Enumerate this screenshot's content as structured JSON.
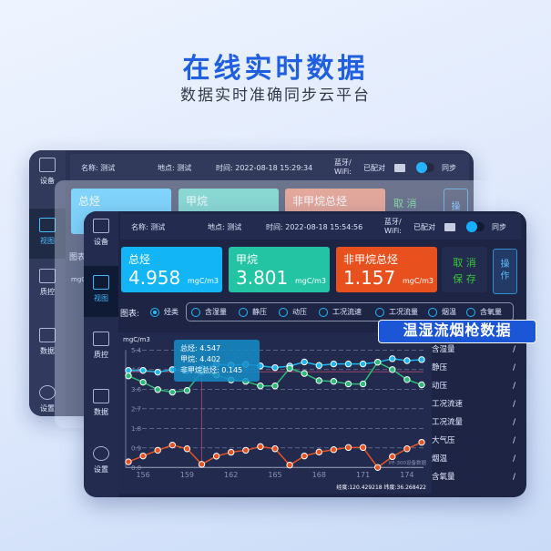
{
  "hero": {
    "title": "在线实时数据",
    "subtitle": "数据实时准确同步云平台",
    "badge": "温湿流烟枪数据"
  },
  "sidebar": {
    "items": [
      {
        "label": "设备",
        "icon": "tablet-icon"
      },
      {
        "label": "视图",
        "icon": "window-icon",
        "active": true
      },
      {
        "label": "质控",
        "icon": "list-window-icon"
      },
      {
        "label": "数据",
        "icon": "bar-chart-icon"
      },
      {
        "label": "设置",
        "icon": "gear-icon"
      }
    ]
  },
  "back": {
    "name": "名称: 测试",
    "place": "地点: 测试",
    "time": "时间: 2022-08-18 15:29:34",
    "bt": "蓝牙/\nWiFi:",
    "paired": "已配对",
    "sync": "同步",
    "cards": [
      "总烃",
      "甲烷",
      "非甲烷总烃"
    ],
    "cancel": "取 消",
    "op": "操",
    "chart_label": "图表",
    "unit": "mgC"
  },
  "front": {
    "name": "名称: 测试",
    "place": "地点: 测试",
    "time": "时间: 2022-08-18 15:54:56",
    "bt": "蓝牙/\nWiFi:",
    "paired": "已配对",
    "sync": "同步",
    "cards": [
      {
        "title": "总烃",
        "value": "4.958",
        "unit": "mgC/m3",
        "color": "#12b5f5"
      },
      {
        "title": "甲烷",
        "value": "3.801",
        "unit": "mgC/m3",
        "color": "#22c4a4"
      },
      {
        "title": "非甲烷总烃",
        "value": "1.157",
        "unit": "mgC/m3",
        "color": "#e8501e"
      }
    ],
    "cancel": "取 消",
    "save": "保 存",
    "operate": "操\n作",
    "chart_selector": {
      "label": "图表:",
      "options": [
        "烃类",
        "含湿量",
        "静压",
        "动压",
        "工况流速",
        "工况流量",
        "烟温",
        "含氧量"
      ],
      "selected": "烃类"
    },
    "params": [
      {
        "name": "含湿量",
        "value": "/"
      },
      {
        "name": "静压",
        "value": "/"
      },
      {
        "name": "动压",
        "value": "/"
      },
      {
        "name": "工况流速",
        "value": "/"
      },
      {
        "name": "工况流量",
        "value": "/"
      },
      {
        "name": "大气压",
        "value": "/"
      },
      {
        "name": "烟温",
        "value": "/"
      },
      {
        "name": "含氧量",
        "value": "/"
      }
    ],
    "tooltip": [
      "总烃: 4.547",
      "甲烷: 4.402",
      "非甲烷总烃: 0.145"
    ],
    "watermark": "PF-300设备数据",
    "coords": "经度:120.429218  纬度:36.268422"
  },
  "chart_data": {
    "type": "line",
    "ylabel": "mgC/m3",
    "ylim": [
      0,
      5.4
    ],
    "yticks": [
      "0.0",
      "0.9",
      "1.8",
      "2.7",
      "3.6",
      "4.5",
      "5.4"
    ],
    "xticks": [
      "156",
      "159",
      "162",
      "165",
      "168",
      "171",
      "174"
    ],
    "grid": true,
    "x": [
      155,
      156,
      157,
      158,
      159,
      160,
      161,
      162,
      163,
      164,
      165,
      166,
      167,
      168,
      169,
      170,
      171,
      172,
      173,
      174,
      175
    ],
    "threshold": 4.4,
    "cursor_x": 160,
    "series": [
      {
        "key": "total",
        "color": "#1cb6f2",
        "values": [
          4.46,
          4.46,
          4.38,
          4.5,
          4.46,
          4.547,
          4.74,
          4.71,
          4.74,
          4.67,
          4.59,
          4.66,
          4.85,
          4.69,
          4.76,
          4.76,
          4.76,
          4.84,
          5.0,
          4.91,
          4.958
        ]
      },
      {
        "key": "methane",
        "color": "#2dbb78",
        "values": [
          4.21,
          3.92,
          3.58,
          3.46,
          3.54,
          4.402,
          4.25,
          4.02,
          3.96,
          3.75,
          3.75,
          4.56,
          4.32,
          3.99,
          3.96,
          3.84,
          3.84,
          4.84,
          4.5,
          4.04,
          3.801
        ]
      },
      {
        "key": "nmhc",
        "color": "#ea5320",
        "values": [
          0.26,
          0.53,
          0.79,
          1.03,
          0.86,
          0.145,
          0.52,
          0.7,
          0.79,
          0.96,
          0.86,
          0.11,
          0.53,
          0.71,
          0.82,
          0.92,
          0.92,
          0.0,
          0.5,
          0.86,
          1.157
        ]
      }
    ]
  }
}
